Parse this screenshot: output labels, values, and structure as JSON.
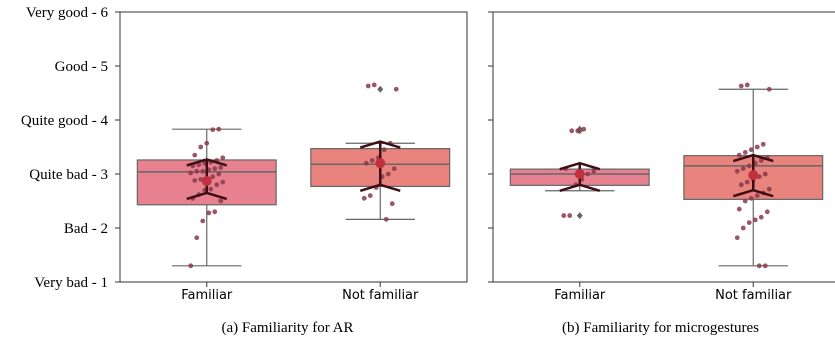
{
  "chart_data": [
    {
      "type": "box",
      "title": "",
      "caption": "(a) Familiarity for AR",
      "xlabel": "",
      "ylabel": "",
      "ylim": [
        1,
        6
      ],
      "y_ticks": [
        {
          "value": 1,
          "label": "Very bad - 1"
        },
        {
          "value": 2,
          "label": "Bad - 2"
        },
        {
          "value": 3,
          "label": "Quite bad - 3"
        },
        {
          "value": 4,
          "label": "Quite good - 4"
        },
        {
          "value": 5,
          "label": "Good - 5"
        },
        {
          "value": 6,
          "label": "Very good - 6"
        }
      ],
      "categories": [
        "Familiar",
        "Not familiar"
      ],
      "grid": false,
      "boxes": [
        {
          "category": "Familiar",
          "color": "#e8818f",
          "q1": 2.43,
          "median": 3.04,
          "q3": 3.26,
          "whisker_low": 1.3,
          "whisker_high": 3.83,
          "mean": 2.87,
          "ci": [
            2.65,
            3.27
          ],
          "fliers": []
        },
        {
          "category": "Not familiar",
          "color": "#e8837e",
          "q1": 2.77,
          "median": 3.18,
          "q3": 3.47,
          "whisker_low": 2.16,
          "whisker_high": 3.57,
          "mean": 3.2,
          "ci": [
            2.8,
            3.6
          ],
          "fliers": [
            4.57
          ]
        }
      ],
      "points": [
        {
          "category": "Familiar",
          "values": [
            1.3,
            1.82,
            2.13,
            2.28,
            2.3,
            2.5,
            2.55,
            2.62,
            2.7,
            2.72,
            2.8,
            2.85,
            2.88,
            2.9,
            2.92,
            2.95,
            3.0,
            3.02,
            3.05,
            3.05,
            3.08,
            3.1,
            3.12,
            3.15,
            3.17,
            3.2,
            3.22,
            3.25,
            3.3,
            3.35,
            3.5,
            3.57,
            3.82,
            3.83
          ]
        },
        {
          "category": "Not familiar",
          "values": [
            2.16,
            2.45,
            2.55,
            2.6,
            2.75,
            2.95,
            3.0,
            3.1,
            3.2,
            3.25,
            3.3,
            3.45,
            3.57,
            4.57,
            4.63,
            4.65
          ]
        }
      ]
    },
    {
      "type": "box",
      "title": "",
      "caption": "(b) Familiarity for microgestures",
      "xlabel": "",
      "ylabel": "",
      "ylim": [
        1,
        6
      ],
      "categories": [
        "Familiar",
        "Not familiar"
      ],
      "grid": false,
      "boxes": [
        {
          "category": "Familiar",
          "color": "#e8818f",
          "q1": 2.79,
          "median": 3.0,
          "q3": 3.09,
          "whisker_low": 2.69,
          "whisker_high": 3.09,
          "mean": 3.0,
          "ci": [
            2.8,
            3.2
          ],
          "fliers": [
            2.23,
            3.8,
            3.83
          ]
        },
        {
          "category": "Not familiar",
          "color": "#e8837e",
          "q1": 2.53,
          "median": 3.15,
          "q3": 3.34,
          "whisker_low": 1.3,
          "whisker_high": 4.57,
          "mean": 2.98,
          "ci": [
            2.7,
            3.35
          ],
          "fliers": []
        }
      ],
      "points": [
        {
          "category": "Familiar",
          "values": [
            2.23,
            2.23,
            2.8,
            2.9,
            3.0,
            3.05,
            3.1,
            3.8,
            3.8,
            3.83
          ]
        },
        {
          "category": "Not familiar",
          "values": [
            1.3,
            1.3,
            1.82,
            2.0,
            2.1,
            2.15,
            2.2,
            2.3,
            2.35,
            2.5,
            2.55,
            2.6,
            2.65,
            2.72,
            2.8,
            2.85,
            2.9,
            2.95,
            3.0,
            3.05,
            3.1,
            3.15,
            3.2,
            3.25,
            3.3,
            3.35,
            3.4,
            3.45,
            3.5,
            3.55,
            4.57,
            4.63,
            4.65
          ]
        }
      ]
    }
  ]
}
